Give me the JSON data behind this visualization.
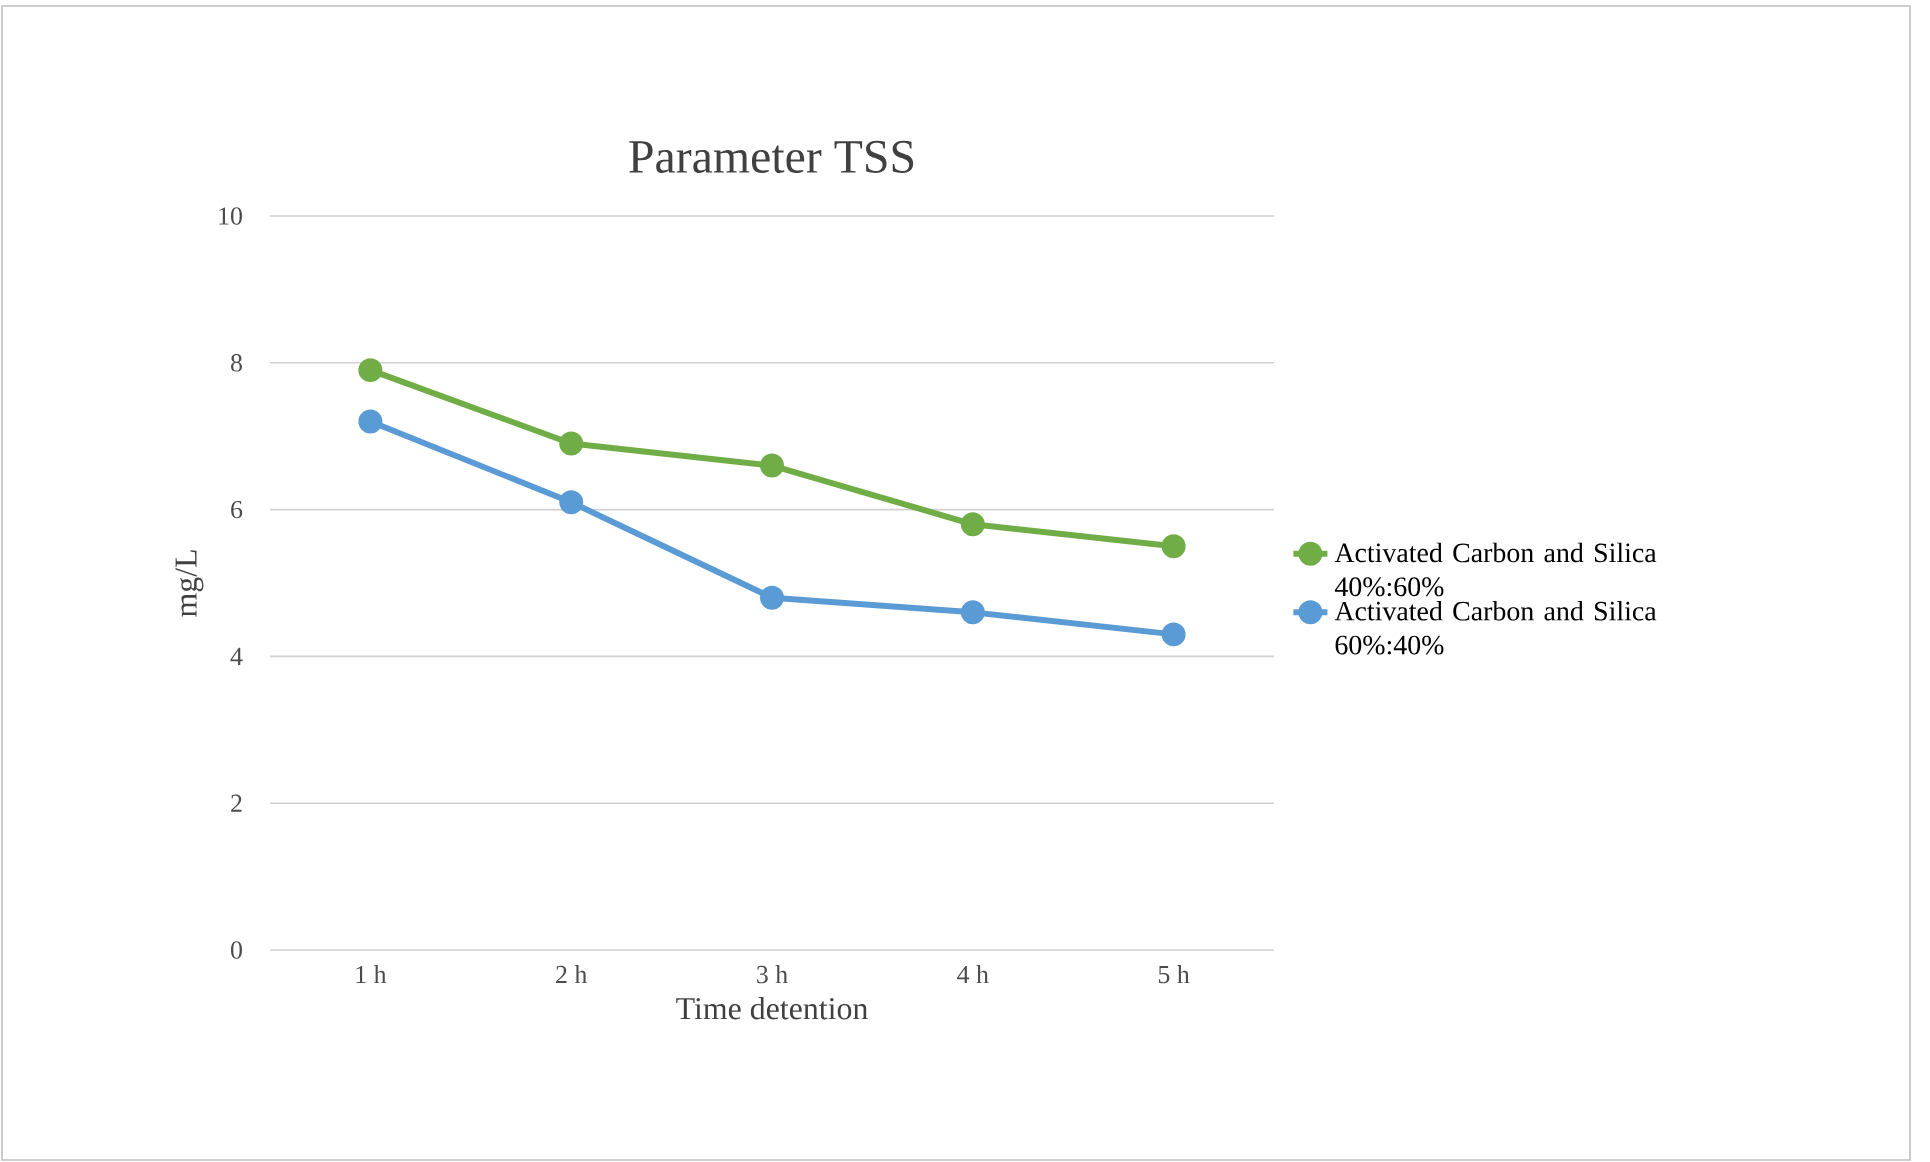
{
  "chart_data": {
    "type": "line",
    "title": "Parameter  TSS",
    "xlabel": "Time detention",
    "ylabel": "mg/L",
    "categories": [
      "1 h",
      "2 h",
      "3 h",
      "4 h",
      "5 h"
    ],
    "series": [
      {
        "name": "Activated Carbon and Silica 40%:60%",
        "color": "#70ad47",
        "values": [
          7.9,
          6.9,
          6.6,
          5.8,
          5.5
        ]
      },
      {
        "name": "Activated Carbon and Silica 60%:40%",
        "color": "#5b9bd5",
        "values": [
          7.2,
          6.1,
          4.8,
          4.6,
          4.3
        ]
      }
    ],
    "ylim": [
      0,
      10
    ],
    "yticks": [
      0,
      2,
      4,
      6,
      8,
      10
    ],
    "grid": "y",
    "legend": "right",
    "marker": "circle",
    "line_style": "solid"
  }
}
